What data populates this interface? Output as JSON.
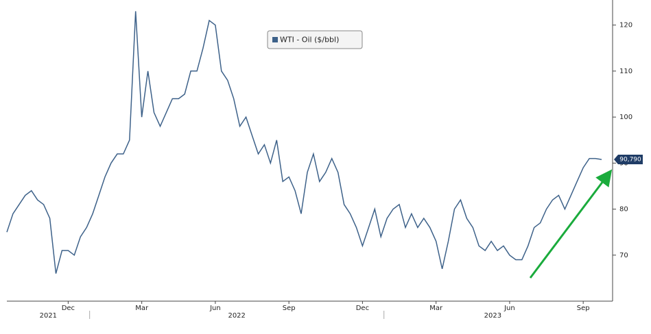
{
  "chart_data": {
    "type": "line",
    "legend_position": "top-center",
    "categories": [
      null,
      null,
      null,
      null,
      null,
      null,
      null,
      null,
      null,
      null,
      "Dec",
      null,
      null,
      null,
      null,
      null,
      null,
      null,
      null,
      null,
      null,
      null,
      "Mar",
      null,
      null,
      null,
      null,
      null,
      null,
      null,
      null,
      null,
      null,
      null,
      "Jun",
      null,
      null,
      null,
      null,
      null,
      null,
      null,
      null,
      null,
      null,
      null,
      "Sep",
      null,
      null,
      null,
      null,
      null,
      null,
      null,
      null,
      null,
      null,
      null,
      "Dec",
      null,
      null,
      null,
      null,
      null,
      null,
      null,
      null,
      null,
      null,
      null,
      "Mar",
      null,
      null,
      null,
      null,
      null,
      null,
      null,
      null,
      null,
      null,
      null,
      "Jun",
      null,
      null,
      null,
      null,
      null,
      null,
      null,
      null,
      null,
      null,
      null,
      "Sep",
      null,
      null,
      null
    ],
    "category_groups": [
      {
        "label": "2021",
        "size": 14
      },
      {
        "label": "2022",
        "size": 48
      },
      {
        "label": "2023",
        "size": 36
      }
    ],
    "series": [
      {
        "name": "WTI - Oil ($/bbl)",
        "color": "#3d6189",
        "values": [
          75,
          79,
          81,
          83,
          84,
          82,
          81,
          78,
          66,
          71,
          71,
          70,
          74,
          76,
          79,
          83,
          87,
          90,
          92,
          92,
          95,
          123,
          100,
          110,
          101,
          98,
          101,
          104,
          104,
          105,
          110,
          110,
          115,
          121,
          120,
          110,
          108,
          104,
          98,
          100,
          96,
          92,
          94,
          90,
          95,
          86,
          87,
          84,
          79,
          88,
          92,
          86,
          88,
          91,
          88,
          81,
          79,
          76,
          72,
          76,
          80,
          74,
          78,
          80,
          81,
          76,
          79,
          76,
          78,
          76,
          73,
          67,
          73,
          80,
          82,
          78,
          76,
          72,
          71,
          73,
          71,
          72,
          70,
          69,
          69,
          72,
          76,
          77,
          80,
          82,
          83,
          80,
          83,
          86,
          89,
          91,
          91,
          90.79
        ],
        "value_labels": [
          null,
          null,
          null,
          null,
          null,
          null,
          null,
          null,
          null,
          null,
          null,
          null,
          null,
          null,
          null,
          null,
          null,
          null,
          null,
          null,
          null,
          null,
          null,
          null,
          null,
          null,
          null,
          null,
          null,
          null,
          null,
          null,
          null,
          null,
          null,
          null,
          null,
          null,
          null,
          null,
          null,
          null,
          null,
          null,
          null,
          null,
          null,
          null,
          null,
          null,
          null,
          null,
          null,
          null,
          null,
          null,
          null,
          null,
          null,
          null,
          null,
          null,
          null,
          null,
          null,
          null,
          null,
          null,
          null,
          null,
          null,
          null,
          null,
          null,
          null,
          null,
          null,
          null,
          null,
          null,
          null,
          null,
          null,
          null,
          null,
          null,
          null,
          null,
          null,
          null,
          null,
          null,
          null,
          null,
          null,
          null,
          null,
          "90,790"
        ]
      }
    ],
    "ylim": [
      60,
      125
    ],
    "yticks": [
      70,
      80,
      90,
      100,
      110,
      120
    ],
    "y_axis_side": "right"
  }
}
